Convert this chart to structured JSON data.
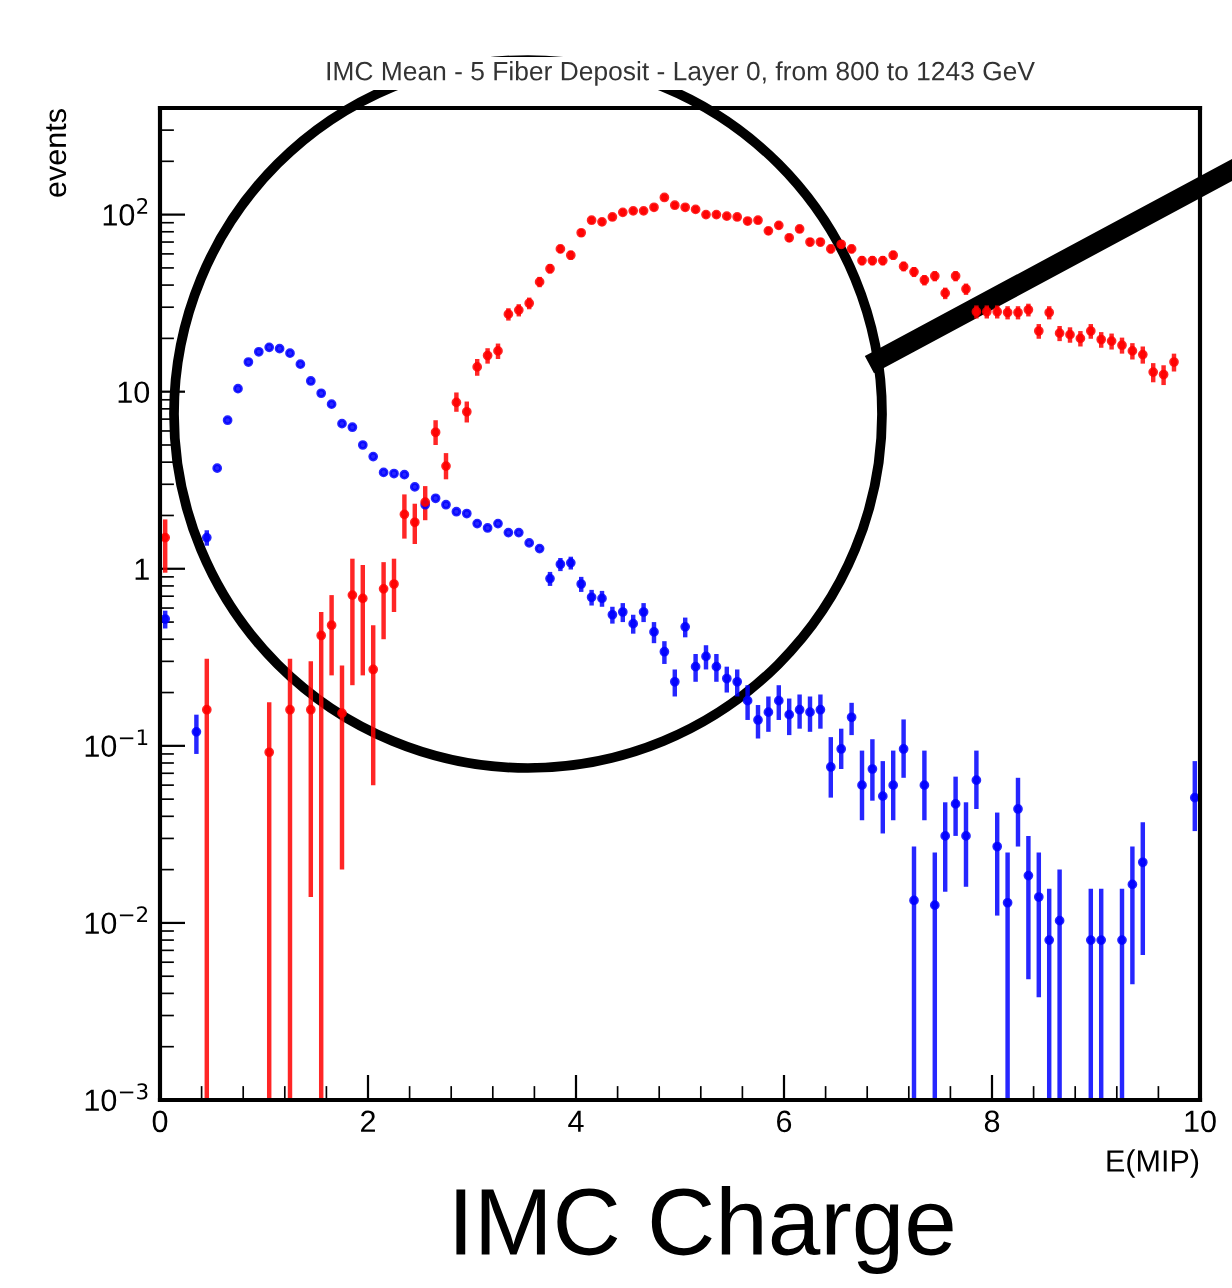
{
  "chart_data": {
    "type": "scatter",
    "title": "IMC Mean - 5 Fiber Deposit - Layer 0, from 800 to 1243 GeV",
    "xlabel": "E(MIP)",
    "ylabel": "events",
    "annotations": [
      "IMC Charge"
    ],
    "xlim": [
      0,
      10
    ],
    "xticks": [
      0,
      2,
      4,
      6,
      8,
      10
    ],
    "ylim": [
      0.001,
      400
    ],
    "log": "y",
    "yticks": [
      {
        "value": 0.001,
        "label": "10$^{−3}$"
      },
      {
        "value": 0.01,
        "label": "10$^{−2}$"
      },
      {
        "value": 0.1,
        "label": "10$^{−1}$"
      },
      1,
      10,
      {
        "value": 100,
        "label": "10$^{2}$"
      }
    ],
    "grid": false,
    "legend": false,
    "marker": "circle",
    "series": [
      {
        "color": "#0000ff",
        "x": [
          0.05,
          0.35,
          0.45,
          0.55,
          0.65,
          0.75,
          0.85,
          0.95,
          1.05,
          1.15,
          1.25,
          1.35,
          1.45,
          1.55,
          1.65,
          1.75,
          1.85,
          1.95,
          2.05,
          2.15,
          2.25,
          2.35,
          2.45,
          2.55,
          2.65,
          2.75,
          2.85,
          2.95,
          3.05,
          3.15,
          3.25,
          3.35,
          3.45,
          3.55,
          3.65,
          3.75,
          3.85,
          3.95,
          4.05,
          4.15,
          4.25,
          4.35,
          4.45,
          4.55,
          4.65,
          4.75,
          4.85,
          4.95,
          5.05,
          5.15,
          5.25,
          5.35,
          5.45,
          5.55,
          5.65,
          5.75,
          5.85,
          5.95,
          6.05,
          6.15,
          6.25,
          6.35,
          6.45,
          6.55,
          6.65,
          6.75,
          6.85,
          6.95,
          7.05,
          7.15,
          7.25,
          7.35,
          7.45,
          7.55,
          7.65,
          7.75,
          7.85,
          8.05,
          8.15,
          8.25,
          8.35,
          8.45,
          8.55,
          8.65,
          8.95,
          9.05,
          9.25,
          9.35,
          9.45,
          9.95
        ],
        "values": [
          0.52,
          0.12,
          1.5,
          3.7,
          6.9,
          10.4,
          14.7,
          16.8,
          17.8,
          17.5,
          16.5,
          14.3,
          11.5,
          9.8,
          8.5,
          6.6,
          6.3,
          5.0,
          4.3,
          3.5,
          3.45,
          3.4,
          2.9,
          2.3,
          2.5,
          2.3,
          2.1,
          2.05,
          1.8,
          1.7,
          1.8,
          1.6,
          1.6,
          1.4,
          1.3,
          0.88,
          1.06,
          1.08,
          0.82,
          0.69,
          0.68,
          0.55,
          0.57,
          0.49,
          0.57,
          0.44,
          0.34,
          0.23,
          0.47,
          0.28,
          0.32,
          0.28,
          0.24,
          0.23,
          0.18,
          0.14,
          0.155,
          0.18,
          0.15,
          0.16,
          0.155,
          0.16,
          0.076,
          0.096,
          0.145,
          0.06,
          0.074,
          0.052,
          0.06,
          0.096,
          0.0134,
          0.06,
          0.0126,
          0.031,
          0.047,
          0.031,
          0.064,
          0.027,
          0.013,
          0.044,
          0.0185,
          0.014,
          0.008,
          0.0103,
          0.008,
          0.008,
          0.008,
          0.0165,
          0.022,
          0.051
        ],
        "errors": [
          0.06,
          0.03,
          0.15,
          null,
          null,
          null,
          null,
          null,
          null,
          null,
          null,
          null,
          null,
          null,
          null,
          null,
          null,
          null,
          null,
          null,
          null,
          null,
          null,
          null,
          null,
          null,
          null,
          null,
          null,
          null,
          null,
          null,
          null,
          null,
          null,
          0.08,
          0.09,
          0.09,
          0.08,
          0.07,
          0.07,
          0.06,
          0.07,
          0.06,
          0.07,
          0.06,
          0.05,
          0.04,
          0.06,
          0.05,
          0.05,
          0.05,
          0.04,
          0.04,
          0.04,
          0.03,
          0.035,
          0.04,
          0.035,
          0.035,
          0.035,
          0.035,
          [
            0.051,
            0.112
          ],
          [
            0.074,
            0.125
          ],
          0.03,
          [
            0.038,
            0.094
          ],
          [
            0.049,
            0.109
          ],
          [
            0.032,
            0.082
          ],
          [
            0.038,
            0.094
          ],
          [
            0.066,
            0.141
          ],
          [
            0.001,
            0.027
          ],
          [
            0.038,
            0.094
          ],
          [
            0.001,
            0.025
          ],
          [
            0.015,
            0.048
          ],
          [
            0.031,
            0.067
          ],
          [
            0.016,
            0.048
          ],
          [
            0.044,
            0.094
          ],
          [
            0.011,
            0.042
          ],
          [
            0.001,
            0.025
          ],
          [
            0.027,
            0.066
          ],
          [
            0.0048,
            0.031
          ],
          [
            0.0038,
            0.025
          ],
          [
            0.001,
            0.0156
          ],
          [
            0.001,
            0.02
          ],
          [
            0.001,
            0.0156
          ],
          [
            0.001,
            0.0156
          ],
          [
            0.001,
            0.0156
          ],
          [
            0.0045,
            0.027
          ],
          [
            0.0066,
            0.037
          ],
          [
            0.033,
            0.082
          ]
        ]
      },
      {
        "color": "#ff0000",
        "x": [
          0.05,
          0.45,
          1.05,
          1.25,
          1.45,
          1.55,
          1.65,
          1.75,
          1.85,
          1.95,
          2.05,
          2.15,
          2.25,
          2.35,
          2.45,
          2.55,
          2.65,
          2.75,
          2.85,
          2.95,
          3.05,
          3.15,
          3.25,
          3.35,
          3.45,
          3.55,
          3.65,
          3.75,
          3.85,
          3.95,
          4.05,
          4.15,
          4.25,
          4.35,
          4.45,
          4.55,
          4.65,
          4.75,
          4.85,
          4.95,
          5.05,
          5.15,
          5.25,
          5.35,
          5.45,
          5.55,
          5.65,
          5.75,
          5.85,
          5.95,
          6.05,
          6.15,
          6.25,
          6.35,
          6.45,
          6.55,
          6.65,
          6.75,
          6.85,
          6.95,
          7.05,
          7.15,
          7.25,
          7.35,
          7.45,
          7.55,
          7.65,
          7.75,
          7.85,
          7.95,
          8.05,
          8.15,
          8.25,
          8.35,
          8.45,
          8.55,
          8.65,
          8.75,
          8.85,
          8.95,
          9.05,
          9.15,
          9.25,
          9.35,
          9.45,
          9.55,
          9.65,
          9.75
        ],
        "values": [
          1.5,
          0.16,
          0.092,
          0.16,
          0.16,
          0.42,
          0.48,
          0.153,
          0.71,
          0.68,
          0.27,
          0.77,
          0.82,
          2.03,
          1.83,
          2.38,
          5.9,
          3.8,
          8.7,
          7.7,
          13.8,
          16.0,
          17.0,
          27.4,
          28.9,
          31.6,
          41.7,
          49.5,
          64,
          59,
          79,
          93,
          91,
          97,
          103,
          105,
          105,
          110,
          125,
          113,
          110,
          107,
          100,
          100,
          98,
          97,
          92,
          93,
          81,
          87,
          74,
          83,
          70,
          70,
          64,
          68,
          64,
          55,
          55,
          55,
          59,
          51,
          47.5,
          42.7,
          45,
          36,
          45,
          38,
          28.3,
          28.3,
          28.3,
          28,
          28,
          29,
          22,
          28,
          21.4,
          21,
          20,
          22,
          19.7,
          19.3,
          18.3,
          17,
          16.2,
          12.9,
          12.5,
          14.7
        ],
        "errors": [
          [
            0.95,
            1.9
          ],
          [
            0.001,
            0.31
          ],
          [
            0.001,
            0.176
          ],
          [
            0.001,
            0.31
          ],
          [
            0.014,
            0.3
          ],
          [
            0.001,
            0.57
          ],
          0.23,
          [
            0.02,
            0.284
          ],
          [
            0.22,
            1.14
          ],
          [
            0.25,
            1.05
          ],
          0.21,
          [
            0.4,
            1.09
          ],
          [
            0.57,
            1.14
          ],
          [
            1.48,
            2.63
          ],
          [
            1.38,
            2.33
          ],
          [
            1.88,
            2.93
          ],
          [
            5.0,
            6.9
          ],
          [
            3.2,
            4.5
          ],
          [
            7.7,
            9.9
          ],
          [
            6.7,
            8.8
          ],
          1.5,
          1.6,
          1.7,
          2.2,
          2.3,
          2.4,
          2.8,
          3.0,
          3.5,
          3.4,
          4.0,
          4.3,
          4.3,
          4.4,
          4.5,
          4.6,
          4.6,
          4.7,
          5.0,
          4.8,
          4.7,
          4.6,
          4.5,
          4.5,
          4.4,
          4.4,
          4.3,
          4.3,
          4.0,
          4.2,
          3.9,
          4.1,
          3.8,
          3.8,
          3.6,
          3.7,
          3.6,
          3.3,
          3.3,
          3.3,
          3.4,
          3.2,
          3.1,
          2.9,
          3.0,
          2.7,
          3.0,
          2.8,
          2.4,
          2.4,
          2.4,
          2.4,
          2.4,
          2.4,
          2.1,
          2.4,
          2.1,
          2.1,
          2.0,
          2.1,
          2.0,
          2.0,
          1.9,
          1.8,
          1.8,
          1.6,
          1.6,
          1.7
        ]
      }
    ]
  }
}
